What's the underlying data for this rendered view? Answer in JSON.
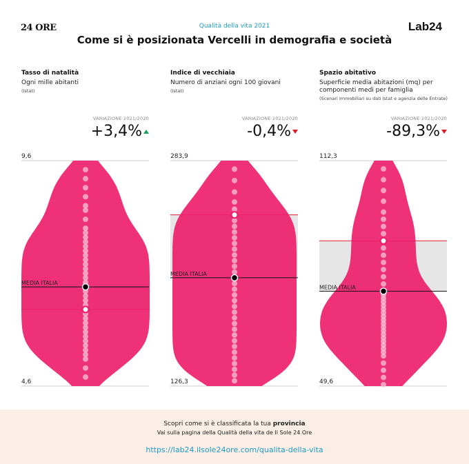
{
  "header": {
    "logo_left": "24 ORE",
    "kicker": "Qualità della vita 2021",
    "title": "Come si è posizionata Vercelli in demografia e società",
    "logo_right": "Lab24"
  },
  "chart_data": [
    {
      "type": "violin",
      "title": "Tasso di natalità",
      "subtitle": "Ogni mille abitanti",
      "source": "(Istat)",
      "variation_label": "VARIAZIONE 2021/2020",
      "variation_sign": "+",
      "variation_value": "3,4%",
      "variation_direction": "up",
      "ylim": [
        4.6,
        9.6
      ],
      "y_max_label": "9,6",
      "y_min_label": "4,6",
      "media_italia_label": "MEDIA ITALIA",
      "media_italia": 6.8,
      "province_value": 6.3,
      "band": [
        6.3,
        6.8
      ],
      "values": [
        9.4,
        9.2,
        9.0,
        8.8,
        8.6,
        8.5,
        8.3,
        8.1,
        8.0,
        7.9,
        7.8,
        7.7,
        7.6,
        7.5,
        7.4,
        7.3,
        7.2,
        7.1,
        7.0,
        6.9,
        6.8,
        6.7,
        6.6,
        6.5,
        6.4,
        6.3,
        6.2,
        6.1,
        6.0,
        5.9,
        5.8,
        5.7,
        5.6,
        5.5,
        5.4,
        5.3,
        5.2,
        5.0,
        4.8
      ]
    },
    {
      "type": "violin",
      "title": "Indice di vecchiaia",
      "subtitle": "Numero di anziani ogni 100 giovani",
      "source": "(Istat)",
      "variation_label": "VARIAZIONE 2021/2020",
      "variation_sign": "-",
      "variation_value": "0,4%",
      "variation_direction": "down",
      "ylim": [
        126.3,
        283.9
      ],
      "y_max_label": "283,9",
      "y_min_label": "126,3",
      "media_italia_label": "MEDIA ITALIA",
      "media_italia": 202,
      "province_value": 246,
      "band": [
        202,
        246
      ],
      "values": [
        278,
        270,
        262,
        255,
        250,
        246,
        242,
        238,
        234,
        230,
        226,
        222,
        218,
        214,
        210,
        206,
        202,
        198,
        194,
        190,
        186,
        182,
        178,
        174,
        170,
        166,
        162,
        158,
        154,
        150,
        146,
        142,
        138,
        134,
        130
      ]
    },
    {
      "type": "violin",
      "title": "Spazio abitativo",
      "subtitle": "Superficie media abitazioni (mq) per componenti medi per famiglia",
      "source": "(Scenari Immobiliari su dati Istat e agenzia delle Entrate)",
      "variation_label": "VARIAZIONE 2021/2020",
      "variation_sign": "-",
      "variation_value": "89,3%",
      "variation_direction": "down",
      "ylim": [
        49.6,
        112.3
      ],
      "y_max_label": "112,3",
      "y_min_label": "49,6",
      "media_italia_label": "MEDIA ITALIA",
      "media_italia": 76,
      "province_value": 90,
      "band": [
        76,
        90
      ],
      "values": [
        110,
        107,
        104,
        101,
        98,
        96,
        94,
        92,
        90,
        88,
        86,
        84,
        82,
        80,
        78,
        76,
        75,
        74,
        73,
        72,
        71,
        70,
        69,
        68,
        67,
        66,
        65,
        64,
        63,
        62,
        61,
        60,
        59,
        58,
        56,
        54,
        52,
        50
      ]
    }
  ],
  "footer": {
    "line1_prefix": "Scopri come si è classificata la tua ",
    "line1_bold": "provincia",
    "line2": "Vai sulla pagina della Qualità della vita de Il Sole 24 Ore",
    "link": "https://lab24.ilsole24ore.com/qualita-della-vita"
  },
  "colors": {
    "violin": "#ee1f6c",
    "band": "#e6e6e6",
    "band_edge": "#e0192b",
    "dot": "#f7c3d6",
    "kicker": "#1e9bc5"
  }
}
